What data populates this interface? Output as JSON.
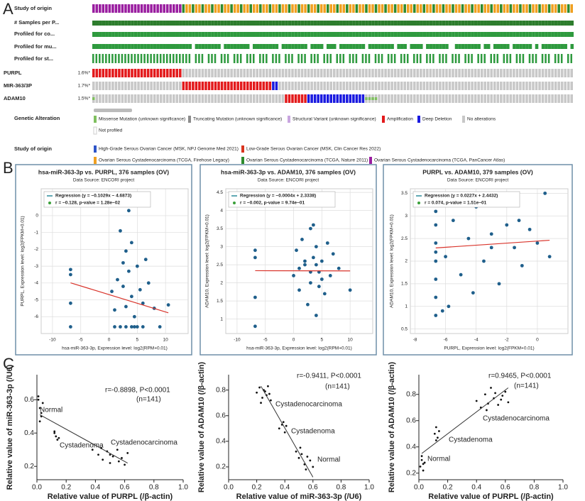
{
  "panel_labels": [
    "A",
    "B",
    "C"
  ],
  "panel_a": {
    "track_labels": [
      "Study of origin",
      "# Samples per P...",
      "Profiled for co...",
      "Profiled for mu...",
      "Profiled for st..."
    ],
    "gene_rows": [
      {
        "name": "PURPL",
        "percent": "1.6%*"
      },
      {
        "name": "MIR-363/3P",
        "percent": "1.7%*"
      },
      {
        "name": "ADAM10",
        "percent": "1.5%*"
      }
    ],
    "alteration_title": "Genetic Alteration",
    "alteration_legend": [
      {
        "label": "Missense Mutation (unknown significance)",
        "color": "#7fbf5f"
      },
      {
        "label": "Truncating Mutation (unknown significance)",
        "color": "#8c8c8c"
      },
      {
        "label": "Structural Variant (unknown significance)",
        "color": "#c9a6e0"
      },
      {
        "label": "Amplification",
        "color": "#e31a1c"
      },
      {
        "label": "Deep Deletion",
        "color": "#1a1ae0"
      },
      {
        "label": "No alterations",
        "color": "#c8c8c8"
      },
      {
        "label": "Not profiled",
        "color": "#ffffff"
      }
    ],
    "study_title": "Study of origin",
    "study_legend": [
      {
        "label": "High-Grade Serous Ovarian Cancer (MSK, NPJ Genome Med 2021)",
        "color": "#2f55c8"
      },
      {
        "label": "Low-Grade Serous Ovarian Cancer (MSK, Clin Cancer Res 2022)",
        "color": "#d9341f"
      },
      {
        "label": "Ovarian Serous Cystadenocarcinoma (TCGA, Firehose Legacy)",
        "color": "#f0a020"
      },
      {
        "label": "Ovarian Serous Cystadenocarcinoma (TCGA, Nature 2011)",
        "color": "#2e8b2e"
      },
      {
        "label": "Ovarian Serous Cystadenocarcinoma (TCGA, PanCancer Atlas)",
        "color": "#9a1ea0"
      }
    ]
  },
  "chart_data": [
    {
      "type": "scatter",
      "title": "hsa-miR-363-3p vs. PURPL, 376 samples (OV)",
      "subtitle": "Data Source: ENCORI project",
      "legend": [
        "Regression (y = −0.1029x − 4.6873)",
        "r = −0.128, p-value = 1.28e−02"
      ],
      "x_label": "hsa-miR-363-3p, Expression level: log2(RPM+0.01)",
      "y_label": "PURPL, Expression level: log2(FPKM+0.01)",
      "x": [
        -6.8,
        -6.8,
        -6.8,
        -6.8,
        0.5,
        1,
        1.5,
        2,
        2.5,
        3,
        3,
        3.5,
        4,
        4,
        4.5,
        5,
        5.5,
        6,
        6.5,
        7,
        8,
        10.5,
        2,
        3,
        4,
        5,
        1,
        6,
        3.5,
        4.5,
        2.5,
        9
      ],
      "y": [
        -3.2,
        -3.5,
        -5.2,
        -6.6,
        -4.5,
        -5.6,
        -3.8,
        -0.9,
        -4.2,
        -2.1,
        -5.4,
        -3.3,
        -1.6,
        -4.8,
        -6.0,
        -3.0,
        -4.4,
        -5.2,
        -2.6,
        -4.0,
        -5.5,
        -5.3,
        -6.6,
        -6.6,
        -6.6,
        -6.6,
        -6.6,
        -6.6,
        0.3,
        -6.6,
        -2.8,
        -6.6
      ],
      "xlim": [
        -12,
        14
      ],
      "ylim": [
        -7,
        1.6
      ],
      "xticks": [
        -10,
        -5,
        0,
        5,
        10
      ],
      "yticks": [
        -6,
        -5,
        -4,
        -3,
        -2,
        -1,
        0
      ],
      "regression": {
        "slope": -0.1029,
        "intercept": -4.6873
      },
      "color": "#1f5f8b",
      "line_color": "#d9342b",
      "grid": true
    },
    {
      "type": "scatter",
      "title": "hsa-miR-363-3p vs. ADAM10, 376 samples (OV)",
      "subtitle": "Data Source: ENCORI project",
      "legend": [
        "Regression (y = −0.0004x + 2.3338)",
        "r = −0.002, p-value = 9.74e−01"
      ],
      "x_label": "hsa-miR-363-3p, Expression level: log2(RPM+0.01)",
      "y_label": "ADAM10, Expression level: log2(FPKM+0.01)",
      "x": [
        -6.8,
        -6.8,
        -6.8,
        -6.8,
        0,
        0.5,
        1,
        1.5,
        2,
        2.5,
        3,
        3,
        3.5,
        4,
        4,
        4.5,
        5,
        5.5,
        6,
        6.5,
        7,
        8,
        10,
        2,
        3,
        4,
        5,
        3.5,
        4.5,
        1
      ],
      "y": [
        2.9,
        2.7,
        1.6,
        0.8,
        2.2,
        2.9,
        1.8,
        3.2,
        2.5,
        1.4,
        3.5,
        2.0,
        2.7,
        1.1,
        3.0,
        2.3,
        2.6,
        1.7,
        3.1,
        2.2,
        2.8,
        2.4,
        1.8,
        2.6,
        2.3,
        2.5,
        2.1,
        3.6,
        1.9,
        2.4
      ],
      "xlim": [
        -12,
        14
      ],
      "ylim": [
        0.6,
        4.6
      ],
      "xticks": [
        -10,
        -5,
        0,
        5,
        10
      ],
      "yticks": [
        1,
        1.5,
        2,
        2.5,
        3,
        3.5,
        4,
        4.5
      ],
      "regression": {
        "slope": -0.0004,
        "intercept": 2.3338
      },
      "color": "#1f5f8b",
      "line_color": "#d9342b",
      "grid": true
    },
    {
      "type": "scatter",
      "title": "PURPL vs. ADAM10, 379 samples (OV)",
      "subtitle": "Data Source: ENCORI project",
      "legend": [
        "Regression (y = 0.0227x + 2.4432)",
        "r = 0.074, p-value = 1.51e−01"
      ],
      "x_label": "PURPL, Expression level: log2(FPKM+0.01)",
      "y_label": "ADAM10, Expression level: log2(FPKM+0.01)",
      "x": [
        -6.64,
        -6.64,
        -6.64,
        -6.64,
        -6.64,
        -6.64,
        -6.64,
        -6.64,
        -6,
        -5.5,
        -5,
        -4.5,
        -4,
        -3.5,
        -3,
        -2.5,
        -2,
        -1.5,
        -1,
        -0.5,
        0,
        0.5,
        -5.8,
        -4.2,
        -3,
        -1.2,
        0.8,
        -6.2
      ],
      "y": [
        0.8,
        1.2,
        1.6,
        2.0,
        2.4,
        2.8,
        3.1,
        2.2,
        2.1,
        2.9,
        1.7,
        2.5,
        3.2,
        2.0,
        2.6,
        1.5,
        2.8,
        2.3,
        1.9,
        2.7,
        2.4,
        3.5,
        1.0,
        1.3,
        2.3,
        2.9,
        2.1,
        0.9
      ],
      "xlim": [
        -8.3,
        2
      ],
      "ylim": [
        0.4,
        3.6
      ],
      "xticks": [
        -8,
        -6,
        -4,
        -2,
        0
      ],
      "yticks": [
        0.5,
        1,
        1.5,
        2,
        2.5,
        3,
        3.5
      ],
      "regression": {
        "slope": 0.0227,
        "intercept": 2.4432
      },
      "color": "#1f5f8b",
      "line_color": "#d9342b",
      "grid": true
    },
    {
      "type": "scatter",
      "x_label": "Relative value of PURPL (/β-actin)",
      "y_label": "Relative value of miR-363-3p (/U6)",
      "annotations": [
        "r=-0.8898, P<0.0001",
        "(n=141)",
        "Normal",
        "Cystadenoma",
        "Cystadenocarcinoma"
      ],
      "x": [
        0.01,
        0.02,
        0.03,
        0.02,
        0.04,
        0.03,
        0.01,
        0.12,
        0.13,
        0.14,
        0.12,
        0.15,
        0.38,
        0.42,
        0.45,
        0.48,
        0.5,
        0.52,
        0.55,
        0.58,
        0.6,
        0.62,
        0.44,
        0.5,
        0.56
      ],
      "y": [
        0.6,
        0.55,
        0.5,
        0.47,
        0.58,
        0.52,
        0.62,
        0.41,
        0.38,
        0.36,
        0.4,
        0.37,
        0.3,
        0.27,
        0.24,
        0.29,
        0.22,
        0.26,
        0.3,
        0.25,
        0.21,
        0.28,
        0.31,
        0.27,
        0.23
      ],
      "xlim": [
        0,
        1
      ],
      "ylim": [
        0.12,
        0.75
      ],
      "xticks": [
        {
          "value": 0,
          "label": "0.0"
        },
        0.2,
        0.4,
        0.6,
        0.8,
        {
          "value": 1,
          "label": "1.0"
        }
      ],
      "yticks": [
        0.2,
        0.4,
        0.6
      ],
      "fit": {
        "x": [
          0.02,
          0.62
        ],
        "y": [
          0.51,
          0.22
        ]
      },
      "color": "#111111",
      "line_color": "#333333",
      "grid": false
    },
    {
      "type": "scatter",
      "x_label": "Relative value of miR-363-3p (/U6)",
      "y_label": "Relative value of ADAM10 (/β-actin)",
      "annotations": [
        "r=-0.9411, P<0.0001",
        "(n=141)",
        "Cystadenocarcinoma",
        "Cystadenoma",
        "Normal"
      ],
      "x": [
        0.2,
        0.22,
        0.24,
        0.25,
        0.27,
        0.28,
        0.3,
        0.23,
        0.26,
        0.29,
        0.36,
        0.38,
        0.4,
        0.39,
        0.41,
        0.48,
        0.5,
        0.52,
        0.54,
        0.56,
        0.58,
        0.6,
        0.51,
        0.55
      ],
      "y": [
        0.78,
        0.82,
        0.74,
        0.8,
        0.76,
        0.83,
        0.72,
        0.7,
        0.79,
        0.77,
        0.5,
        0.53,
        0.47,
        0.55,
        0.52,
        0.32,
        0.27,
        0.3,
        0.22,
        0.28,
        0.25,
        0.2,
        0.35,
        0.18
      ],
      "xlim": [
        0,
        1
      ],
      "ylim": [
        0.1,
        0.92
      ],
      "xticks": [
        {
          "value": 0,
          "label": "0.0"
        },
        0.2,
        0.4,
        0.6,
        0.8,
        {
          "value": 1,
          "label": "1.0"
        }
      ],
      "yticks": [
        0.2,
        0.4,
        0.6,
        0.8
      ],
      "fit": {
        "x": [
          0.23,
          0.6
        ],
        "y": [
          0.83,
          0.12
        ]
      },
      "color": "#111111",
      "line_color": "#333333",
      "grid": false
    },
    {
      "type": "scatter",
      "x_label": "Relative value of PURPL (/β-actin)",
      "y_label": "Relative value of ADAM10 (/β-actin)",
      "annotations": [
        "r=0.9465, P<0.0001",
        "(n=141)",
        "Cystadenocarcinoma",
        "Cystadenoma",
        "Normal"
      ],
      "x": [
        0.01,
        0.02,
        0.03,
        0.04,
        0.02,
        0.03,
        0.11,
        0.12,
        0.13,
        0.14,
        0.12,
        0.4,
        0.43,
        0.46,
        0.48,
        0.5,
        0.52,
        0.55,
        0.58,
        0.6,
        0.62,
        0.47,
        0.53,
        0.57
      ],
      "y": [
        0.25,
        0.3,
        0.22,
        0.28,
        0.33,
        0.27,
        0.5,
        0.55,
        0.47,
        0.52,
        0.45,
        0.75,
        0.7,
        0.8,
        0.73,
        0.85,
        0.77,
        0.72,
        0.79,
        0.82,
        0.74,
        0.68,
        0.81,
        0.76
      ],
      "xlim": [
        0,
        1
      ],
      "ylim": [
        0.15,
        0.95
      ],
      "xticks": [
        {
          "value": 0,
          "label": "0.0"
        },
        0.2,
        0.4,
        0.6,
        0.8,
        {
          "value": 1,
          "label": "1.0"
        }
      ],
      "yticks": [
        0.2,
        0.4,
        0.6,
        0.8
      ],
      "fit": {
        "x": [
          0.02,
          0.62
        ],
        "y": [
          0.35,
          0.85
        ]
      },
      "color": "#111111",
      "line_color": "#333333",
      "grid": false
    }
  ]
}
